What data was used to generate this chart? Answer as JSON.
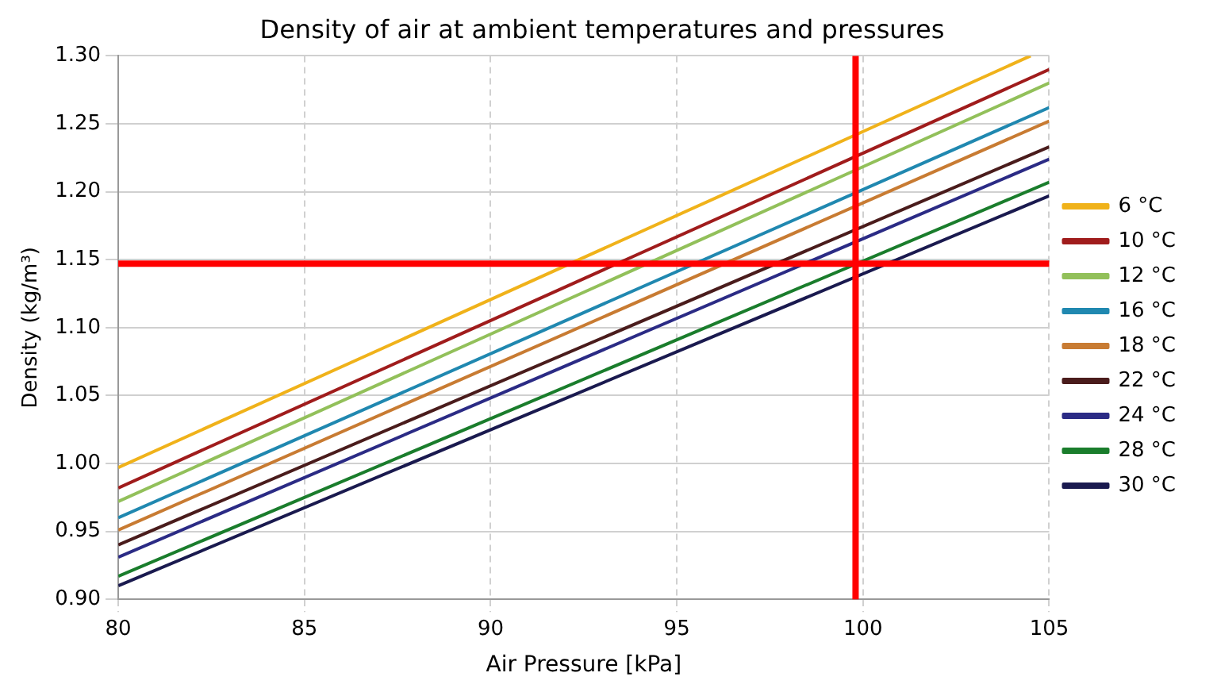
{
  "chart_data": {
    "type": "line",
    "title": "Density of air at ambient temperatures and pressures",
    "xlabel": "Air Pressure [kPa]",
    "ylabel": "Density (kg/m³)",
    "x": [
      80,
      105
    ],
    "series": [
      {
        "name": "6 °C",
        "color": "#f0b21a",
        "x": [
          80,
          104.5
        ],
        "values": [
          0.997,
          1.3
        ]
      },
      {
        "name": "10 °C",
        "color": "#a01c1c",
        "values": [
          0.982,
          1.29
        ]
      },
      {
        "name": "12 °C",
        "color": "#92c05a",
        "values": [
          0.972,
          1.28
        ]
      },
      {
        "name": "16 °C",
        "color": "#2088b0",
        "values": [
          0.96,
          1.262
        ]
      },
      {
        "name": "18 °C",
        "color": "#c87b32",
        "values": [
          0.951,
          1.252
        ]
      },
      {
        "name": "22 °C",
        "color": "#4a1c1c",
        "values": [
          0.94,
          1.233
        ]
      },
      {
        "name": "24 °C",
        "color": "#2b2b85",
        "values": [
          0.931,
          1.224
        ]
      },
      {
        "name": "28 °C",
        "color": "#1a7d2c",
        "values": [
          0.917,
          1.207
        ]
      },
      {
        "name": "30 °C",
        "color": "#1a1a4f",
        "values": [
          0.91,
          1.197
        ]
      }
    ],
    "xlim": [
      80,
      105
    ],
    "xticks": [
      80,
      85,
      90,
      95,
      100,
      105
    ],
    "ylim": [
      0.9,
      1.3
    ],
    "yticks": [
      {
        "value": 0.9,
        "label": "0.90"
      },
      {
        "value": 0.95,
        "label": "0.95"
      },
      {
        "value": 1.0,
        "label": "1.00"
      },
      {
        "value": 1.05,
        "label": "1.05"
      },
      {
        "value": 1.1,
        "label": "1.10"
      },
      {
        "value": 1.15,
        "label": "1.15"
      },
      {
        "value": 1.2,
        "label": "1.20"
      },
      {
        "value": 1.25,
        "label": "1.25"
      },
      {
        "value": 1.3,
        "label": "1.30"
      }
    ],
    "ref_lines": [
      {
        "axis": "x",
        "value": 99.8,
        "color": "#ff0000"
      },
      {
        "axis": "y",
        "value": 1.147,
        "color": "#ff0000"
      }
    ],
    "grid": true,
    "legend": "right",
    "marker": "none",
    "line_style": "solid"
  }
}
